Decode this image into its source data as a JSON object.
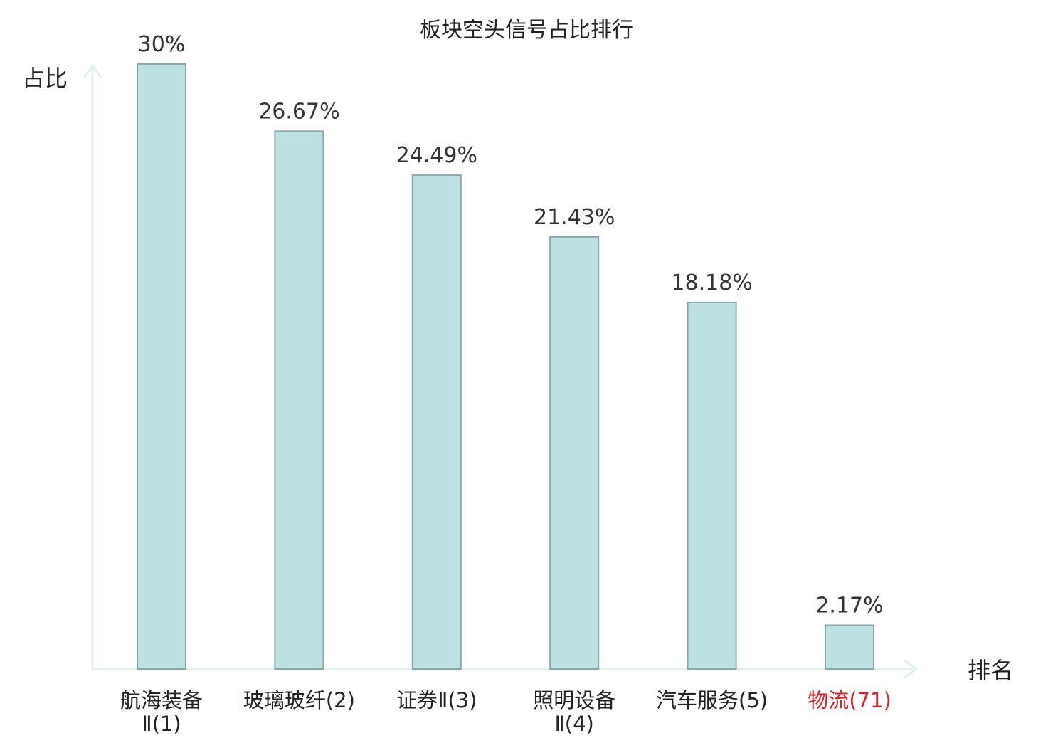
{
  "chart_data": {
    "type": "bar",
    "title": "板块空头信号占比排行",
    "ylabel": "占比",
    "xlabel": "排名",
    "unit": "%",
    "ylim": [
      0,
      30
    ],
    "grid": false,
    "categories": [
      {
        "name": "航海装备Ⅱ",
        "rank": "(1)",
        "lines": [
          "航海装备",
          "Ⅱ(1)"
        ]
      },
      {
        "name": "玻璃玻纤",
        "rank": "(2)",
        "lines": [
          "玻璃玻纤(2)"
        ]
      },
      {
        "name": "证券Ⅱ",
        "rank": "(3)",
        "lines": [
          "证券Ⅱ(3)"
        ]
      },
      {
        "name": "照明设备Ⅱ",
        "rank": "(4)",
        "lines": [
          "照明设备",
          "Ⅱ(4)"
        ]
      },
      {
        "name": "汽车服务",
        "rank": "(5)",
        "lines": [
          "汽车服务(5)"
        ]
      },
      {
        "name": "物流",
        "rank": "(71)",
        "lines": [
          "物流(71)"
        ],
        "highlight": true
      }
    ],
    "values": [
      30,
      26.67,
      24.49,
      21.43,
      18.18,
      2.17
    ],
    "value_labels": [
      "30%",
      "26.67%",
      "24.49%",
      "21.43%",
      "18.18%",
      "2.17%"
    ]
  },
  "colors": {
    "bar_fill": "#bde0e2",
    "bar_stroke": "#8aa8aa",
    "axis": "#e0f2ef",
    "text": "#222222",
    "highlight_text": "#e02020"
  }
}
